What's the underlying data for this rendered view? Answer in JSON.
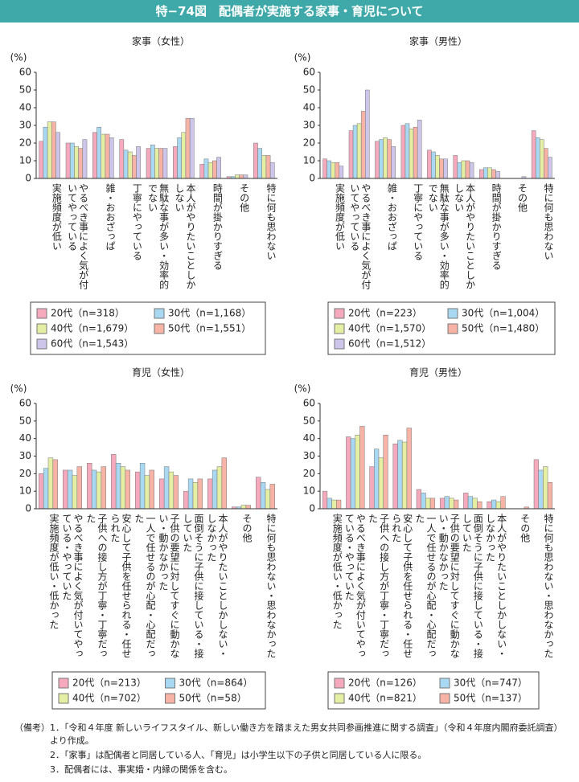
{
  "title": "特−74図　配偶者が実施する家事・育児について",
  "chart_data": [
    {
      "type": "bar",
      "title": "家事（女性）",
      "ylabel": "(%)",
      "categories": [
        "実施頻度が低い",
        "やるべき事によく気が付いてやっている",
        "雑・おおざっぱ",
        "丁寧にやっている",
        "無駄な事が多い・効率的でない",
        "本人がやりたいことしかしない",
        "時間が掛かりすぎる",
        "その他",
        "特に何も思わない"
      ],
      "series": [
        {
          "name": "20代（n=318）",
          "color": "#f5a9bc",
          "values": [
            21,
            20,
            26,
            22,
            17,
            18,
            8,
            1,
            20
          ]
        },
        {
          "name": "30代（n=1,168）",
          "color": "#a9d9f2",
          "values": [
            29,
            20,
            29,
            16,
            19,
            23,
            11,
            1,
            17
          ]
        },
        {
          "name": "40代（n=1,679）",
          "color": "#e4efa3",
          "values": [
            32,
            18,
            25,
            15,
            17,
            26,
            9,
            2,
            13
          ]
        },
        {
          "name": "50代（n=1,551）",
          "color": "#f7b3a6",
          "values": [
            32,
            17,
            25,
            13,
            17,
            34,
            10,
            2,
            13
          ]
        },
        {
          "name": "60代（n=1,543）",
          "color": "#cdc5ea",
          "values": [
            26,
            22,
            23,
            18,
            17,
            34,
            12,
            2,
            9
          ]
        }
      ],
      "ylim": [
        0,
        60
      ],
      "yticks": [
        0,
        10,
        20,
        30,
        40,
        50,
        60
      ],
      "grid": false
    },
    {
      "type": "bar",
      "title": "家事（男性）",
      "ylabel": "(%)",
      "categories": [
        "実施頻度が低い",
        "やるべき事によく気が付いてやっている",
        "雑・おおざっぱ",
        "丁寧にやっている",
        "無駄な事が多い・効率的でない",
        "本人がやりたいことしかしない",
        "時間が掛かりすぎる",
        "その他",
        "特に何も思わない"
      ],
      "series": [
        {
          "name": "20代（n=223）",
          "color": "#f5a9bc",
          "values": [
            11,
            27,
            21,
            30,
            16,
            13,
            5,
            0,
            27
          ]
        },
        {
          "name": "30代（n=1,004）",
          "color": "#a9d9f2",
          "values": [
            10,
            30,
            22,
            31,
            15,
            9,
            6,
            0,
            23
          ]
        },
        {
          "name": "40代（n=1,570）",
          "color": "#e4efa3",
          "values": [
            9,
            31,
            23,
            28,
            13,
            10,
            6,
            0,
            22
          ]
        },
        {
          "name": "50代（n=1,480）",
          "color": "#f7b3a6",
          "values": [
            9,
            38,
            22,
            29,
            11,
            10,
            5,
            0,
            17
          ]
        },
        {
          "name": "60代（n=1,512）",
          "color": "#cdc5ea",
          "values": [
            7,
            50,
            18,
            33,
            11,
            9,
            4,
            1,
            12
          ]
        }
      ],
      "ylim": [
        0,
        60
      ],
      "yticks": [
        0,
        10,
        20,
        30,
        40,
        50,
        60
      ],
      "grid": false
    },
    {
      "type": "bar",
      "title": "育児（女性）",
      "ylabel": "(%)",
      "categories": [
        "実施頻度が低い・低かった",
        "やるべき事によく気が付いてやっている・やっていた",
        "子供への接し方が丁寧・丁寧だった",
        "安心して子供を任せられる・任せられた",
        "一人で任せるのが心配・心配だった",
        "子供の要望に対してすぐに動かない・動かなかった",
        "面倒そうに子供に接している・接していた",
        "本人がやりたいことしかしない・しなかった",
        "その他",
        "特に何も思わない・思わなかった"
      ],
      "series": [
        {
          "name": "20代（n=213）",
          "color": "#f5a9bc",
          "values": [
            20,
            22,
            26,
            31,
            21,
            17,
            10,
            17,
            1,
            18
          ]
        },
        {
          "name": "30代（n=864）",
          "color": "#a9d9f2",
          "values": [
            23,
            22,
            22,
            26,
            26,
            24,
            17,
            22,
            1,
            15
          ]
        },
        {
          "name": "40代（n=702）",
          "color": "#e4efa3",
          "values": [
            29,
            19,
            21,
            24,
            19,
            21,
            15,
            24,
            2,
            11
          ]
        },
        {
          "name": "50代（n=58）",
          "color": "#f7b3a6",
          "values": [
            28,
            24,
            24,
            22,
            22,
            19,
            17,
            29,
            2,
            14
          ]
        }
      ],
      "ylim": [
        0,
        60
      ],
      "yticks": [
        0,
        10,
        20,
        30,
        40,
        50,
        60
      ],
      "grid": false
    },
    {
      "type": "bar",
      "title": "育児（男性）",
      "ylabel": "(%)",
      "categories": [
        "実施頻度が低い・低かった",
        "やるべき事によく気が付いてやっている・やっていた",
        "子供への接し方が丁寧・丁寧だった",
        "安心して子供を任せられる・任せられた",
        "一人で任せるのが心配・心配だった",
        "子供の要望に対してすぐに動かない・動かなかった",
        "面倒そうに子供に接している・接していた",
        "本人がやりたいことしかしない・しなかった",
        "その他",
        "特に何も思わない・思わなかった"
      ],
      "series": [
        {
          "name": "20代（n=126）",
          "color": "#f5a9bc",
          "values": [
            10,
            41,
            24,
            37,
            11,
            6,
            9,
            4,
            0,
            28
          ]
        },
        {
          "name": "30代（n=747）",
          "color": "#a9d9f2",
          "values": [
            6,
            40,
            34,
            39,
            9,
            7,
            7,
            5,
            0,
            22
          ]
        },
        {
          "name": "40代（n=821）",
          "color": "#e4efa3",
          "values": [
            5,
            42,
            29,
            38,
            6,
            6,
            6,
            4,
            0,
            24
          ]
        },
        {
          "name": "50代（n=137）",
          "color": "#f7b3a6",
          "values": [
            5,
            47,
            42,
            46,
            6,
            5,
            4,
            7,
            1,
            15
          ]
        }
      ],
      "ylim": [
        0,
        60
      ],
      "yticks": [
        0,
        10,
        20,
        30,
        40,
        50,
        60
      ],
      "grid": false
    }
  ],
  "notes_label": "（備考）",
  "notes": [
    "1．「令和４年度 新しいライフスタイル、新しい働き方を踏まえた男女共同参画推進に関する調査」（令和４年度内閣府委託調査）より作成。",
    "2．「家事」は配偶者と同居している人、「育児」は小学生以下の子供と同居している人に限る。",
    "3．配偶者には、事実婚・内縁の関係を含む。"
  ]
}
